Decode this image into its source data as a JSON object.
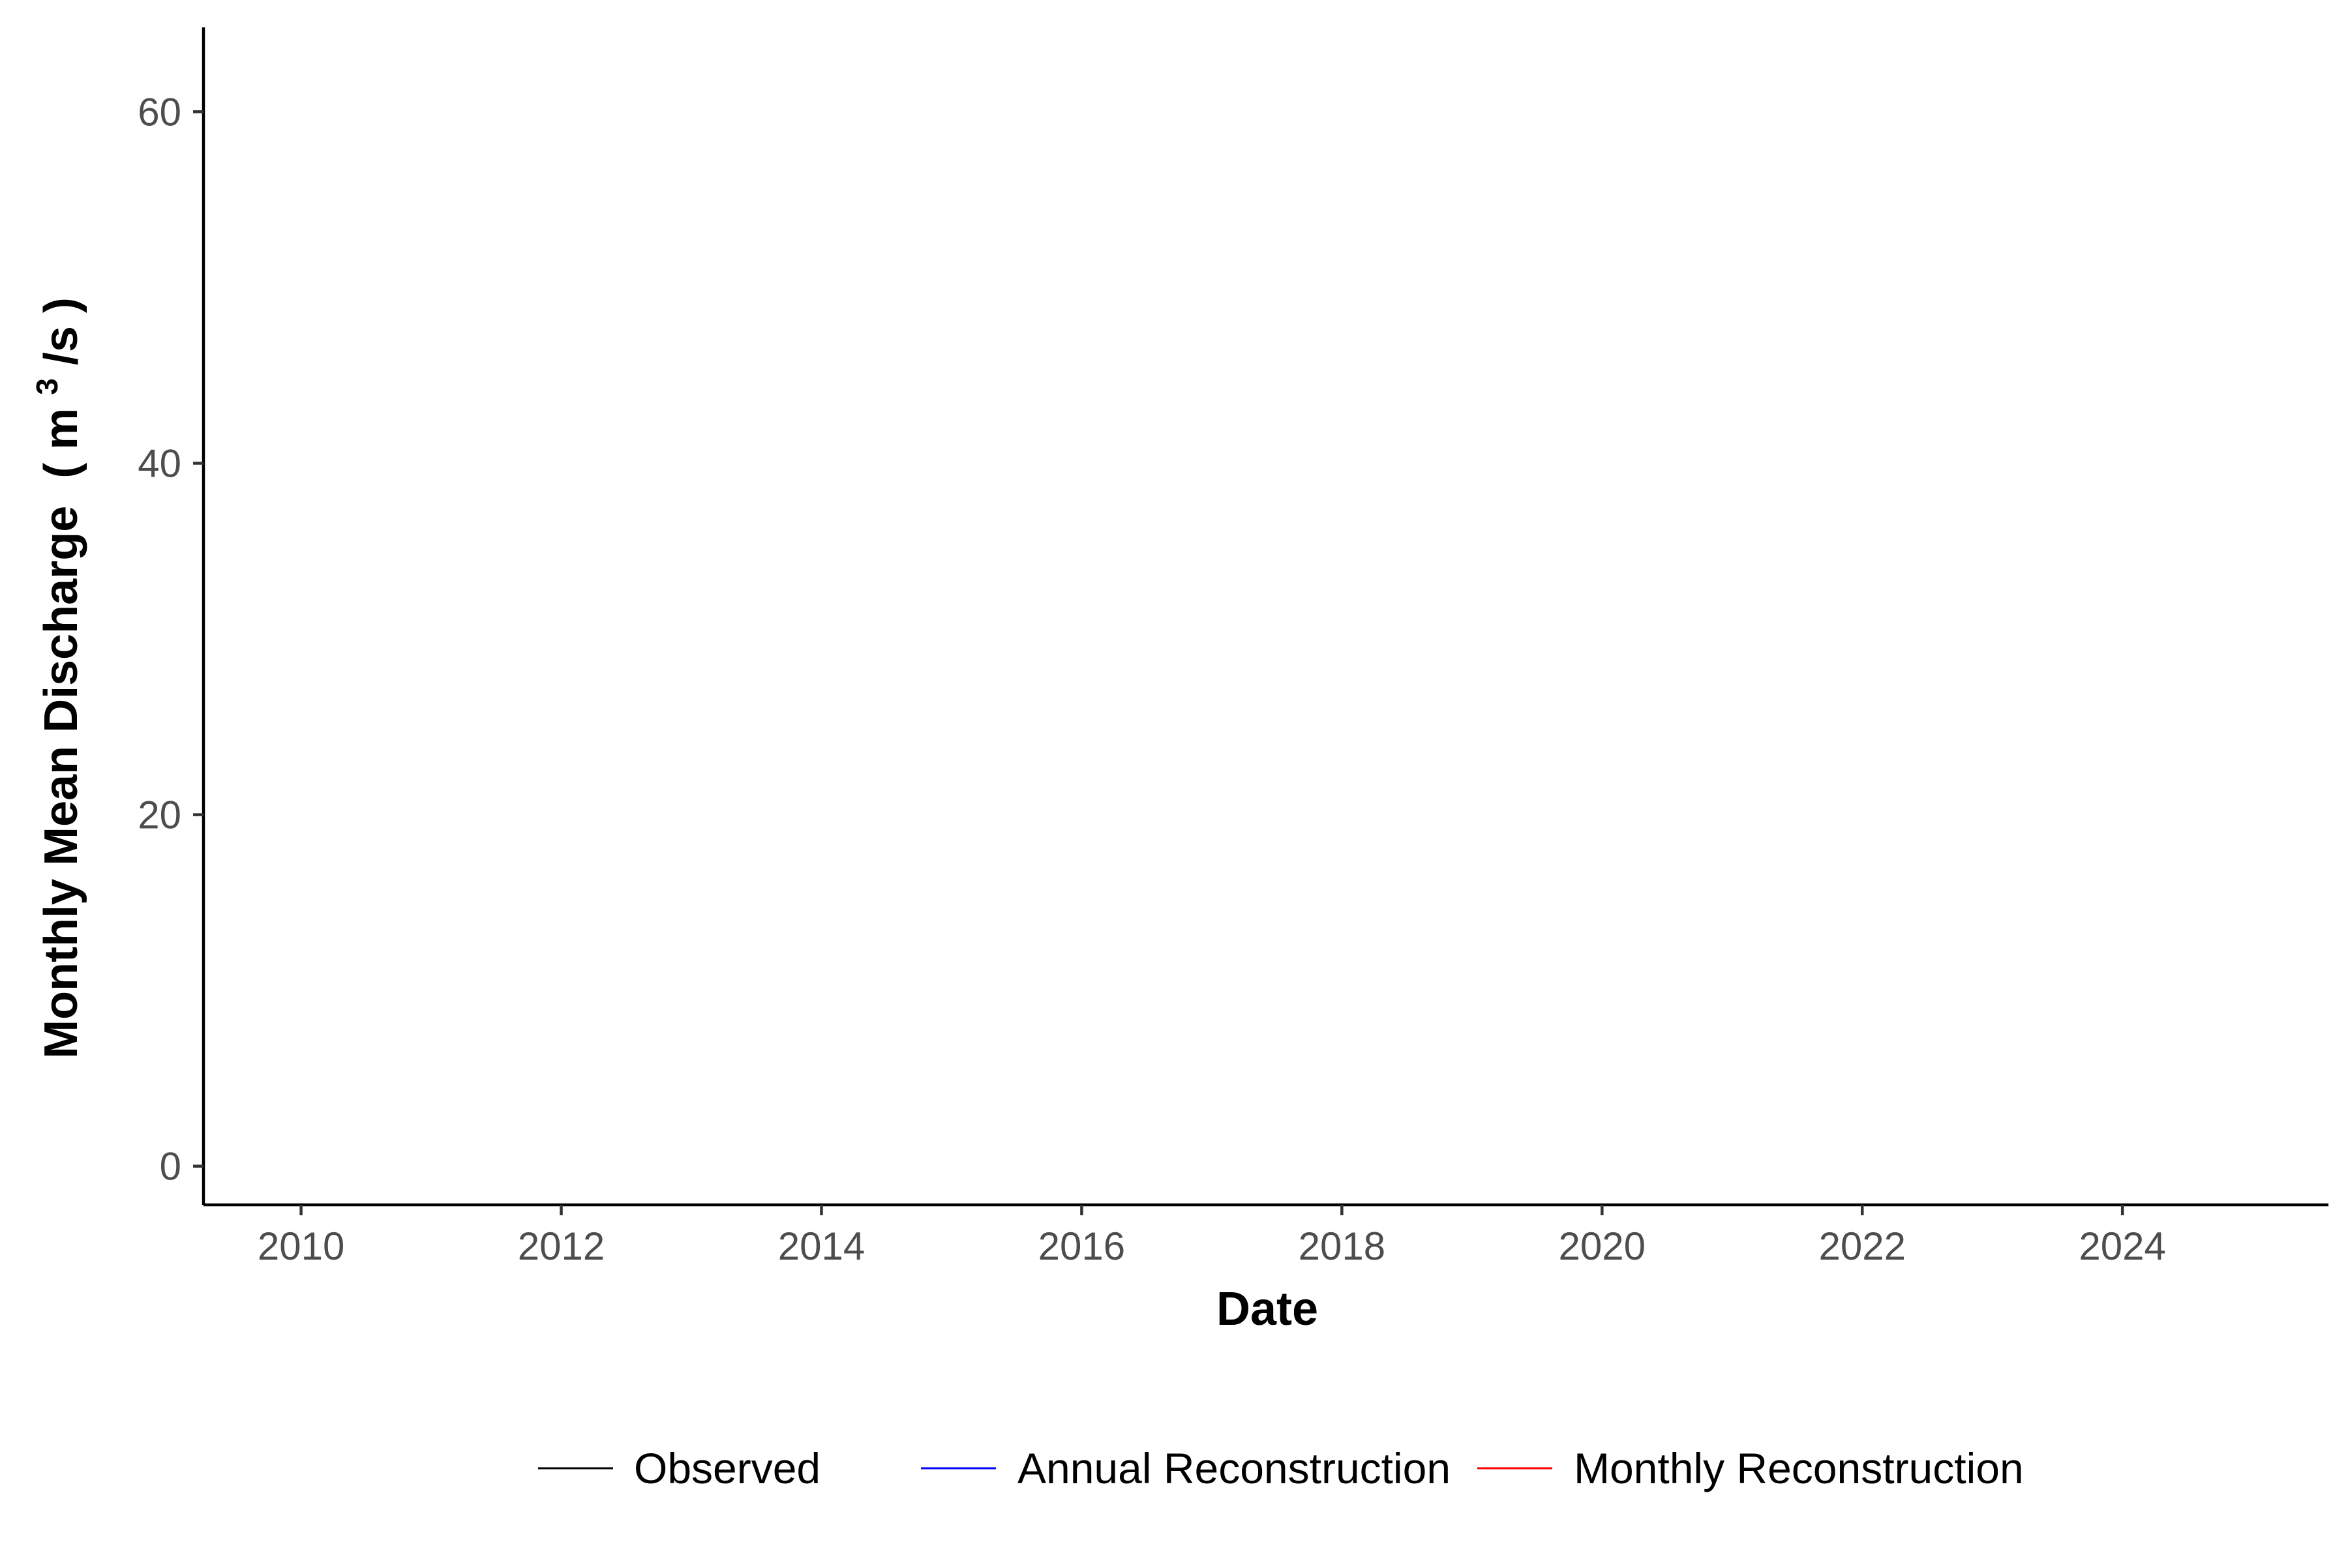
{
  "chart_data": {
    "type": "line",
    "title": "",
    "xlabel": "Date",
    "ylabel": "Monthly Mean Discharge",
    "ylabel_unit_open": "( m",
    "ylabel_unit_sup": "3",
    "ylabel_unit_close": "/s )",
    "x_ticks": [
      "2010",
      "2012",
      "2014",
      "2016",
      "2018",
      "2020",
      "2022",
      "2024"
    ],
    "y_ticks": [
      "0",
      "20",
      "40",
      "60"
    ],
    "xlim": [
      "2009-04",
      "2025-08"
    ],
    "ylim": [
      -2.2,
      64.8
    ],
    "grid": false,
    "legend_position": "bottom",
    "series": [
      {
        "name": "Observed",
        "color": "#000000",
        "x": [],
        "y": []
      },
      {
        "name": "Annual Reconstruction",
        "color": "#0000ff",
        "x": [],
        "y": []
      },
      {
        "name": "Monthly Reconstruction",
        "color": "#ff0000",
        "x": [],
        "y": []
      }
    ]
  }
}
